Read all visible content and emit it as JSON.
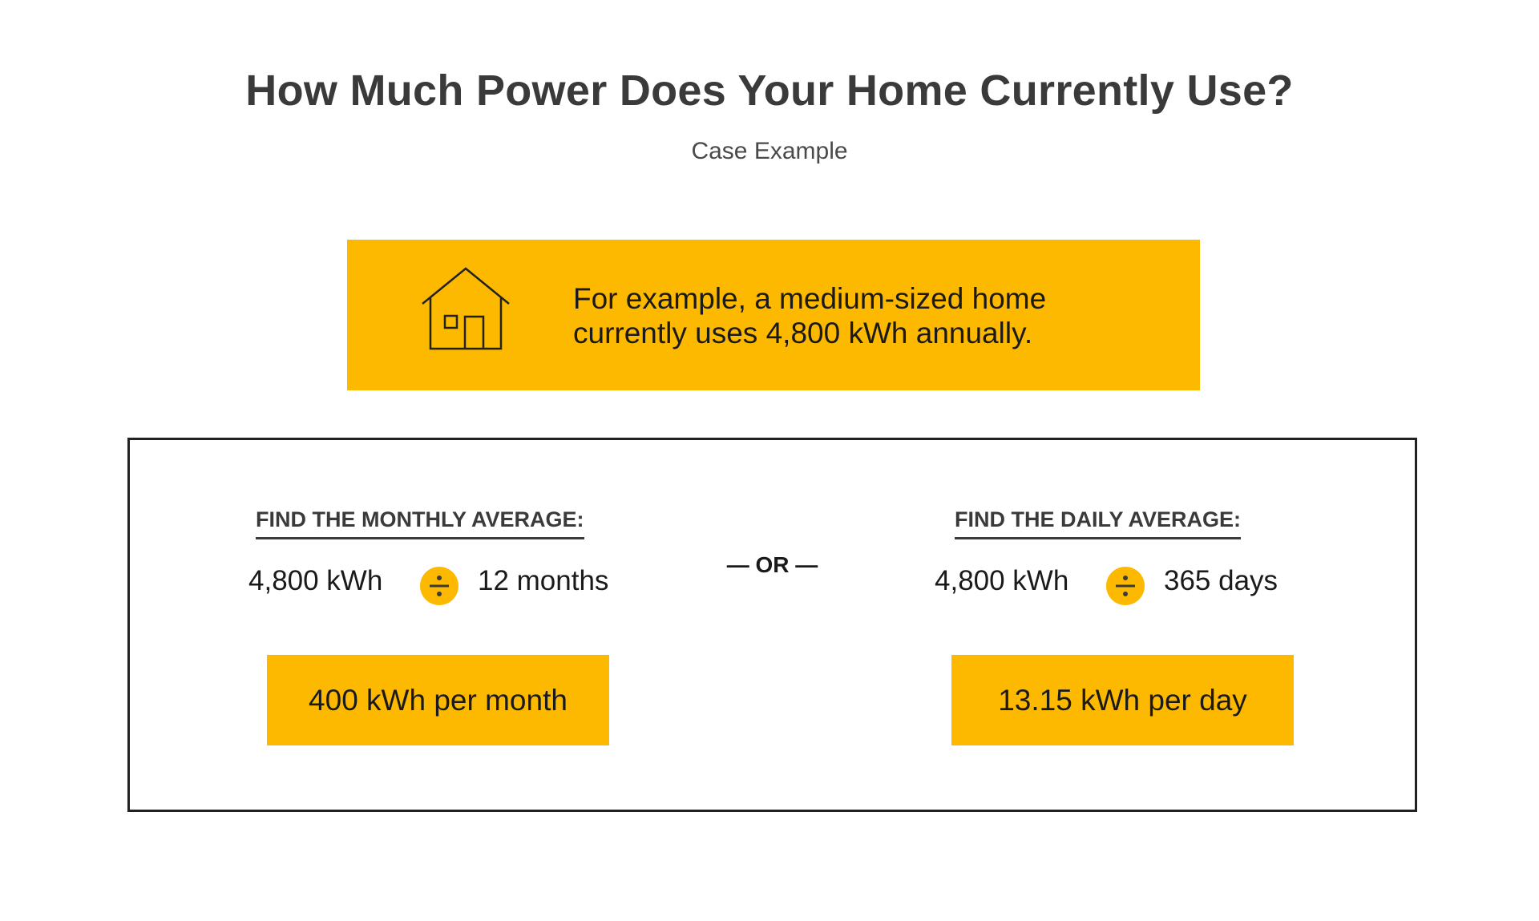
{
  "header": {
    "title": "How Much Power Does Your Home Currently Use?",
    "subtitle": "Case Example"
  },
  "banner": {
    "icon": "house-icon",
    "line1": "For example, a medium-sized home",
    "line2": "currently uses 4,800 kWh annually."
  },
  "monthly": {
    "heading": "FIND THE MONTHLY AVERAGE:",
    "dividend": "4,800 kWh",
    "operator_icon": "divide-icon",
    "divisor": "12 months",
    "result": "400 kWh per month"
  },
  "separator": "— OR —",
  "daily": {
    "heading": "FIND THE DAILY AVERAGE:",
    "dividend": "4,800 kWh",
    "operator_icon": "divide-icon",
    "divisor": "365 days",
    "result": "13.15 kWh per day"
  },
  "colors": {
    "accent": "#fdb800",
    "title": "#3a3a3a",
    "text": "#1a1a1a",
    "border": "#222222"
  }
}
